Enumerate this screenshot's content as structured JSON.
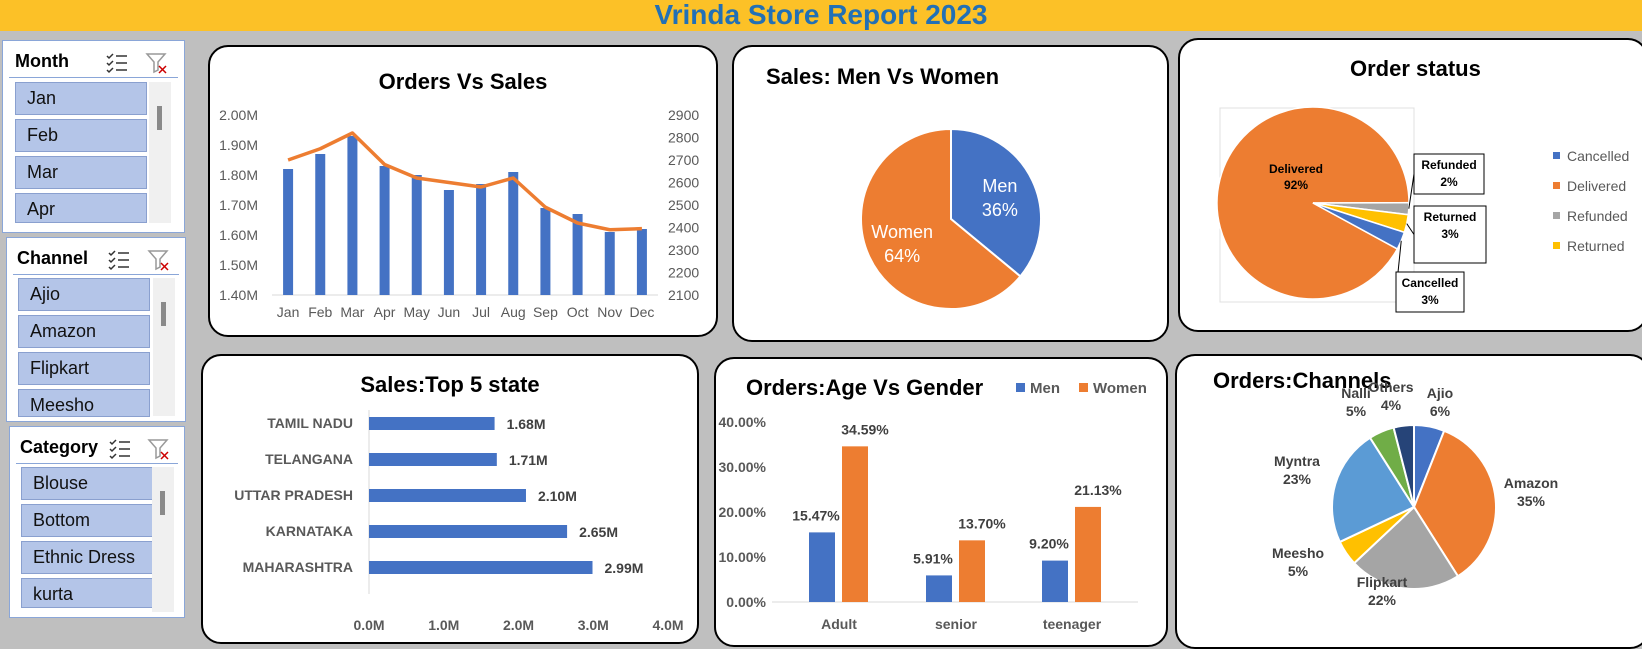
{
  "report_title": "Vrinda Store Report 2023",
  "slicers": {
    "month": {
      "title": "Month",
      "items": [
        "Jan",
        "Feb",
        "Mar",
        "Apr"
      ]
    },
    "channel": {
      "title": "Channel",
      "items": [
        "Ajio",
        "Amazon",
        "Flipkart",
        "Meesho"
      ]
    },
    "category": {
      "title": "Category",
      "items": [
        "Blouse",
        "Bottom",
        "Ethnic Dress",
        "kurta"
      ]
    }
  },
  "colors": {
    "blue": "#4472c4",
    "orange": "#ed7d31",
    "gray": "#a5a5a5",
    "yellow": "#ffc000",
    "light_blue": "#5b9bd5",
    "green": "#70ad47",
    "navy": "#264478",
    "title_bar": "#fcc127",
    "title_text": "#2270b5"
  },
  "chart_data": [
    {
      "id": "orders_vs_sales",
      "type": "bar",
      "title": "Orders Vs Sales",
      "categories": [
        "Jan",
        "Feb",
        "Mar",
        "Apr",
        "May",
        "Jun",
        "Jul",
        "Aug",
        "Sep",
        "Oct",
        "Nov",
        "Dec"
      ],
      "series": [
        {
          "type": "bar",
          "axis": "left",
          "values": [
            1.82,
            1.87,
            1.93,
            1.83,
            1.8,
            1.75,
            1.77,
            1.81,
            1.69,
            1.67,
            1.61,
            1.62
          ]
        },
        {
          "type": "line",
          "axis": "right",
          "values": [
            2700,
            2750,
            2820,
            2680,
            2620,
            2600,
            2580,
            2620,
            2490,
            2420,
            2390,
            2395
          ]
        }
      ],
      "left_axis": {
        "ylim": [
          1.4,
          2.0
        ],
        "ticks": [
          "1.40M",
          "1.50M",
          "1.60M",
          "1.70M",
          "1.80M",
          "1.90M",
          "2.00M"
        ]
      },
      "right_axis": {
        "ylim": [
          2100,
          2900
        ],
        "ticks": [
          "2100",
          "2200",
          "2300",
          "2400",
          "2500",
          "2600",
          "2700",
          "2800",
          "2900"
        ]
      }
    },
    {
      "id": "sales_men_vs_women",
      "type": "pie",
      "title": "Sales: Men Vs Women",
      "slices": [
        {
          "name": "Men",
          "value": 36,
          "label": "36%"
        },
        {
          "name": "Women",
          "value": 64,
          "label": "64%"
        }
      ]
    },
    {
      "id": "order_status",
      "type": "pie",
      "title": "Order status",
      "slices": [
        {
          "name": "Delivered",
          "value": 92,
          "label": "92%"
        },
        {
          "name": "Refunded",
          "value": 2,
          "label": "2%"
        },
        {
          "name": "Returned",
          "value": 3,
          "label": "3%"
        },
        {
          "name": "Cancelled",
          "value": 3,
          "label": "3%"
        }
      ],
      "legend": [
        "Cancelled",
        "Delivered",
        "Refunded",
        "Returned"
      ],
      "legend_position": "right"
    },
    {
      "id": "top5_states",
      "type": "bar",
      "orientation": "horizontal",
      "title": "Sales:Top 5 state",
      "categories": [
        "TAMIL NADU",
        "TELANGANA",
        "UTTAR PRADESH",
        "KARNATAKA",
        "MAHARASHTRA"
      ],
      "values": [
        1.68,
        1.71,
        2.1,
        2.65,
        2.99
      ],
      "value_labels": [
        "1.68M",
        "1.71M",
        "2.10M",
        "2.65M",
        "2.99M"
      ],
      "xlim": [
        0,
        4
      ],
      "ticks": [
        "0.0M",
        "1.0M",
        "2.0M",
        "3.0M",
        "4.0M"
      ]
    },
    {
      "id": "age_vs_gender",
      "type": "bar",
      "title": "Orders:Age Vs Gender",
      "categories": [
        "Adult",
        "senior",
        "teenager"
      ],
      "series": [
        {
          "name": "Men",
          "values": [
            15.47,
            5.91,
            9.2
          ],
          "labels": [
            "15.47%",
            "5.91%",
            "9.20%"
          ]
        },
        {
          "name": "Women",
          "values": [
            34.59,
            13.7,
            21.13
          ],
          "labels": [
            "34.59%",
            "13.70%",
            "21.13%"
          ]
        }
      ],
      "ylim": [
        0,
        40
      ],
      "ticks": [
        "0.00%",
        "10.00%",
        "20.00%",
        "30.00%",
        "40.00%"
      ],
      "legend_position": "top-right"
    },
    {
      "id": "orders_channels",
      "type": "pie",
      "title": "Orders:Channels",
      "slices": [
        {
          "name": "Ajio",
          "value": 6,
          "label": "6%"
        },
        {
          "name": "Amazon",
          "value": 35,
          "label": "35%"
        },
        {
          "name": "Flipkart",
          "value": 22,
          "label": "22%"
        },
        {
          "name": "Meesho",
          "value": 5,
          "label": "5%"
        },
        {
          "name": "Myntra",
          "value": 23,
          "label": "23%"
        },
        {
          "name": "Nalli",
          "value": 5,
          "label": "5%"
        },
        {
          "name": "Others",
          "value": 4,
          "label": "4%"
        }
      ]
    }
  ]
}
